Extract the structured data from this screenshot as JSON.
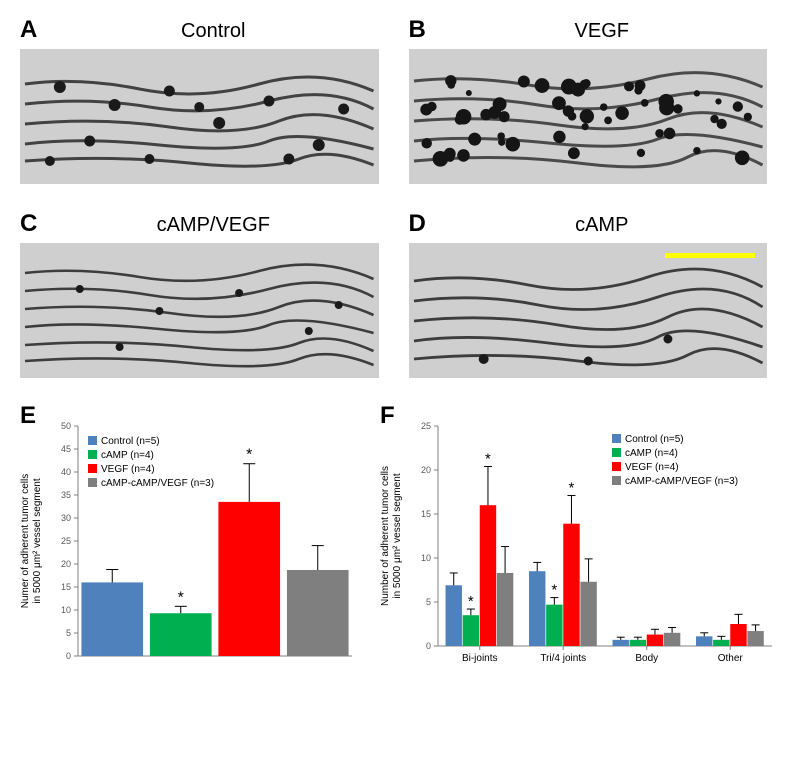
{
  "panels": {
    "A": {
      "label": "A",
      "title": "Control"
    },
    "B": {
      "label": "B",
      "title": "VEGF"
    },
    "C": {
      "label": "C",
      "title": "cAMP/VEGF"
    },
    "D": {
      "label": "D",
      "title": "cAMP"
    }
  },
  "chartE": {
    "label": "E",
    "type": "bar",
    "ylabel": "Numer of adherent tumor cells in 5000 μm² vessel segment",
    "ylabel_fontsize": 10,
    "ylim": [
      0,
      50
    ],
    "ytick_step": 5,
    "yticks": [
      0,
      5,
      10,
      15,
      20,
      25,
      30,
      35,
      40,
      45,
      50
    ],
    "tick_fontsize": 9,
    "legend_fontsize": 10,
    "series": [
      {
        "name": "Control (n=5)",
        "color": "#4f81bd",
        "value": 16.0,
        "err": 2.8,
        "sig": false
      },
      {
        "name": "cAMP (n=4)",
        "color": "#00b050",
        "value": 9.3,
        "err": 1.5,
        "sig": true
      },
      {
        "name": "VEGF (n=4)",
        "color": "#ff0000",
        "value": 33.5,
        "err": 8.3,
        "sig": true
      },
      {
        "name": "cAMP-cAMP/VEGF (n=3)",
        "color": "#7f7f7f",
        "value": 18.7,
        "err": 5.3,
        "sig": false
      }
    ],
    "bar_width": 0.9,
    "background_color": "#ffffff",
    "axis_color": "#808080",
    "tick_color": "#808080"
  },
  "chartF": {
    "label": "F",
    "type": "grouped-bar",
    "ylabel": "Number of adherent tumor cells in 5000 μm² vessel segment",
    "ylabel_fontsize": 10,
    "ylim": [
      0,
      25
    ],
    "ytick_step": 5,
    "yticks": [
      0,
      5,
      10,
      15,
      20,
      25
    ],
    "tick_fontsize": 9,
    "legend_fontsize": 10,
    "categories": [
      "Bi-joints",
      "Tri/4 joints",
      "Body",
      "Other"
    ],
    "category_fontsize": 10,
    "series": [
      {
        "name": "Control (n=5)",
        "color": "#4f81bd"
      },
      {
        "name": "cAMP (n=4)",
        "color": "#00b050"
      },
      {
        "name": "VEGF (n=4)",
        "color": "#ff0000"
      },
      {
        "name": "cAMP-cAMP/VEGF (n=3)",
        "color": "#7f7f7f"
      }
    ],
    "values": [
      [
        6.9,
        3.5,
        16.0,
        8.3
      ],
      [
        8.5,
        4.7,
        13.9,
        7.3
      ],
      [
        0.7,
        0.7,
        1.3,
        1.5
      ],
      [
        1.1,
        0.7,
        2.5,
        1.7
      ]
    ],
    "errors": [
      [
        1.4,
        0.7,
        4.4,
        3.0
      ],
      [
        1.0,
        0.8,
        3.2,
        2.6
      ],
      [
        0.3,
        0.3,
        0.6,
        0.6
      ],
      [
        0.4,
        0.4,
        1.1,
        0.7
      ]
    ],
    "sig": [
      [
        false,
        true,
        true,
        false
      ],
      [
        false,
        true,
        true,
        false
      ],
      [
        false,
        false,
        false,
        false
      ],
      [
        false,
        false,
        false,
        false
      ]
    ],
    "bar_width": 0.9,
    "background_color": "#ffffff",
    "axis_color": "#808080",
    "tick_color": "#808080"
  }
}
